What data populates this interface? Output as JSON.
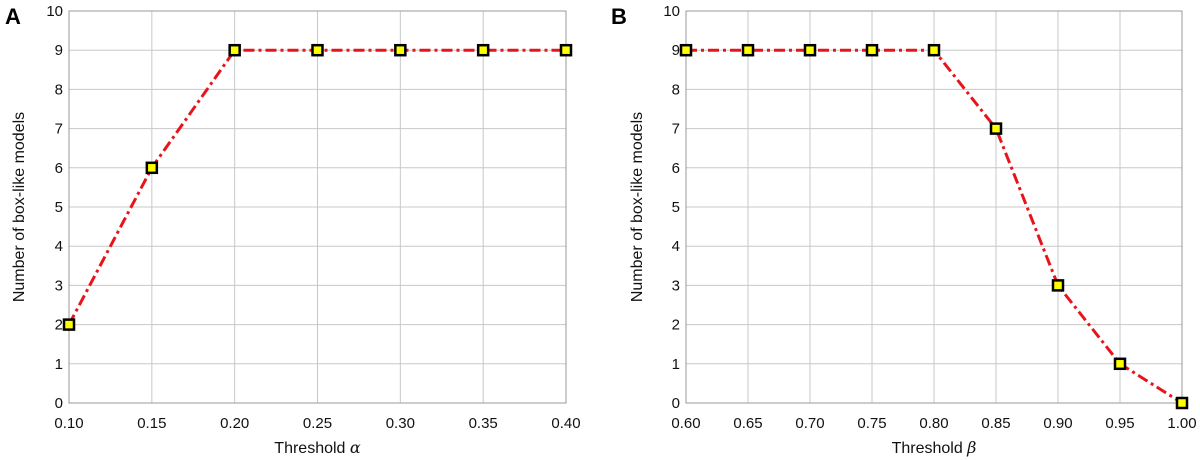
{
  "chart_data": [
    {
      "type": "line",
      "panel_label": "A",
      "xlabel": "Threshold",
      "xlabel_symbol": "α",
      "ylabel": "Number of box-like models",
      "x": [
        0.1,
        0.15,
        0.2,
        0.25,
        0.3,
        0.35,
        0.4
      ],
      "x_tick_labels": [
        "0.10",
        "0.15",
        "0.20",
        "0.25",
        "0.30",
        "0.35",
        "0.40"
      ],
      "y_ticks": [
        0,
        1,
        2,
        3,
        4,
        5,
        6,
        7,
        8,
        9,
        10
      ],
      "xlim": [
        0.1,
        0.4
      ],
      "ylim": [
        0,
        10
      ],
      "grid": true,
      "series": [
        {
          "values": [
            2,
            6,
            9,
            9,
            9,
            9,
            9
          ],
          "line_color": "#e8141c",
          "line_style": "dash-dot",
          "marker": "square",
          "marker_fill": "#ffff00",
          "marker_edge": "#000000"
        }
      ]
    },
    {
      "type": "line",
      "panel_label": "B",
      "xlabel": "Threshold",
      "xlabel_symbol": "β",
      "ylabel": "Number of box-like models",
      "x": [
        0.6,
        0.65,
        0.7,
        0.75,
        0.8,
        0.85,
        0.9,
        0.95,
        1.0
      ],
      "x_tick_labels": [
        "0.60",
        "0.65",
        "0.70",
        "0.75",
        "0.80",
        "0.85",
        "0.90",
        "0.95",
        "1.00"
      ],
      "y_ticks": [
        0,
        1,
        2,
        3,
        4,
        5,
        6,
        7,
        8,
        9,
        10
      ],
      "xlim": [
        0.6,
        1.0
      ],
      "ylim": [
        0,
        10
      ],
      "grid": true,
      "series": [
        {
          "values": [
            9,
            9,
            9,
            9,
            9,
            7,
            3,
            1,
            0
          ],
          "line_color": "#e8141c",
          "line_style": "dash-dot",
          "marker": "square",
          "marker_fill": "#ffff00",
          "marker_edge": "#000000"
        }
      ]
    }
  ]
}
